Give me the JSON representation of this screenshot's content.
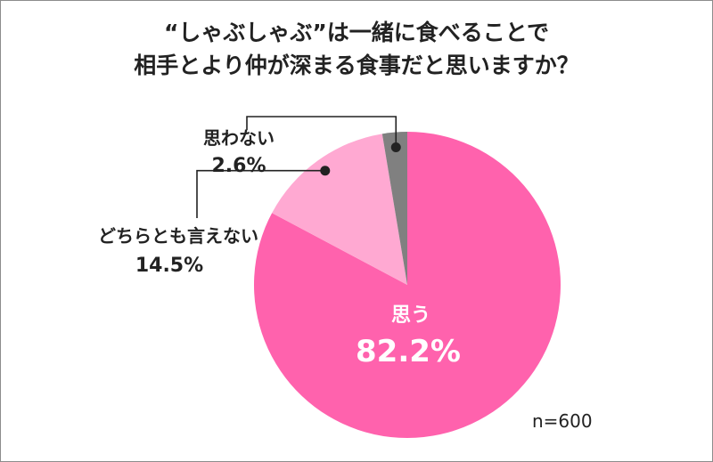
{
  "title": {
    "line1": "“しゃぶしゃぶ”は一緒に食べることで",
    "line2": "相手とより仲が深まる食事だと思いますか？"
  },
  "sample_size": "n=600",
  "chart_data": {
    "type": "pie",
    "title": "“しゃぶしゃぶ”は一緒に食べることで相手とより仲が深まる食事だと思いますか？",
    "slices": [
      {
        "label": "思う",
        "value": 82.2,
        "display": "82.2%",
        "color": "#ff62ad"
      },
      {
        "label": "どちらとも言えない",
        "value": 14.5,
        "display": "14.5%",
        "color": "#ffa9d2"
      },
      {
        "label": "思わない",
        "value": 2.6,
        "display": "2.6%",
        "color": "#808080"
      }
    ],
    "n": 600
  }
}
